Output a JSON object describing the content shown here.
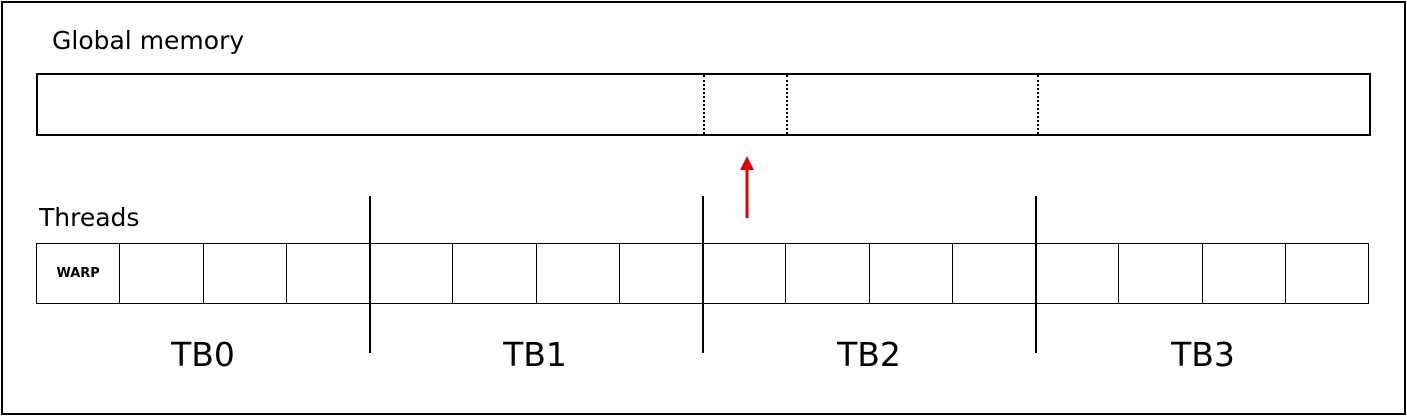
{
  "labels": {
    "global_memory": "Global memory",
    "threads": "Threads"
  },
  "thread_cells": [
    "WARP",
    "",
    "",
    "",
    "",
    "",
    "",
    "",
    "",
    "",
    "",
    "",
    "",
    "",
    "",
    "",
    ""
  ],
  "thread_blocks": [
    {
      "label": "TB0"
    },
    {
      "label": "TB1"
    },
    {
      "label": "TB2"
    },
    {
      "label": "TB3"
    }
  ],
  "colors": {
    "stroke": "#000000",
    "access_arrow": "#e00000"
  }
}
